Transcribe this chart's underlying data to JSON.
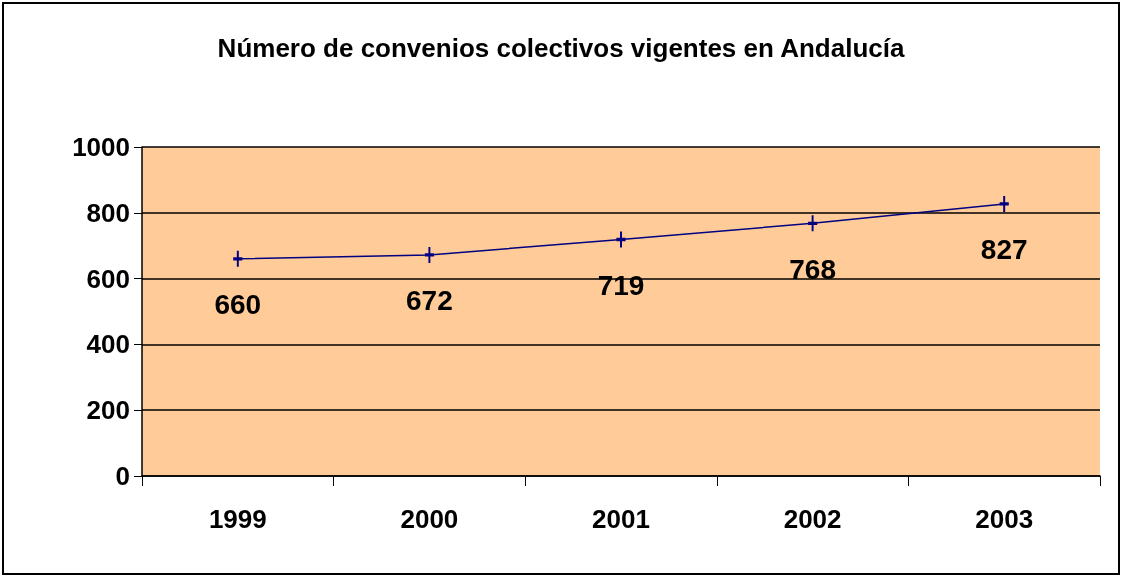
{
  "chart_data": {
    "type": "line",
    "title": "Número de convenios colectivos vigentes en Andalucía",
    "categories": [
      "1999",
      "2000",
      "2001",
      "2002",
      "2003"
    ],
    "series": [
      {
        "color": "#000080",
        "values": [
          660,
          672,
          719,
          768,
          827
        ]
      }
    ],
    "ylim": [
      0,
      1000
    ],
    "yticks": [
      0,
      200,
      400,
      600,
      800,
      1000
    ],
    "grid": "y",
    "data_labels": true,
    "marker": "cross"
  }
}
